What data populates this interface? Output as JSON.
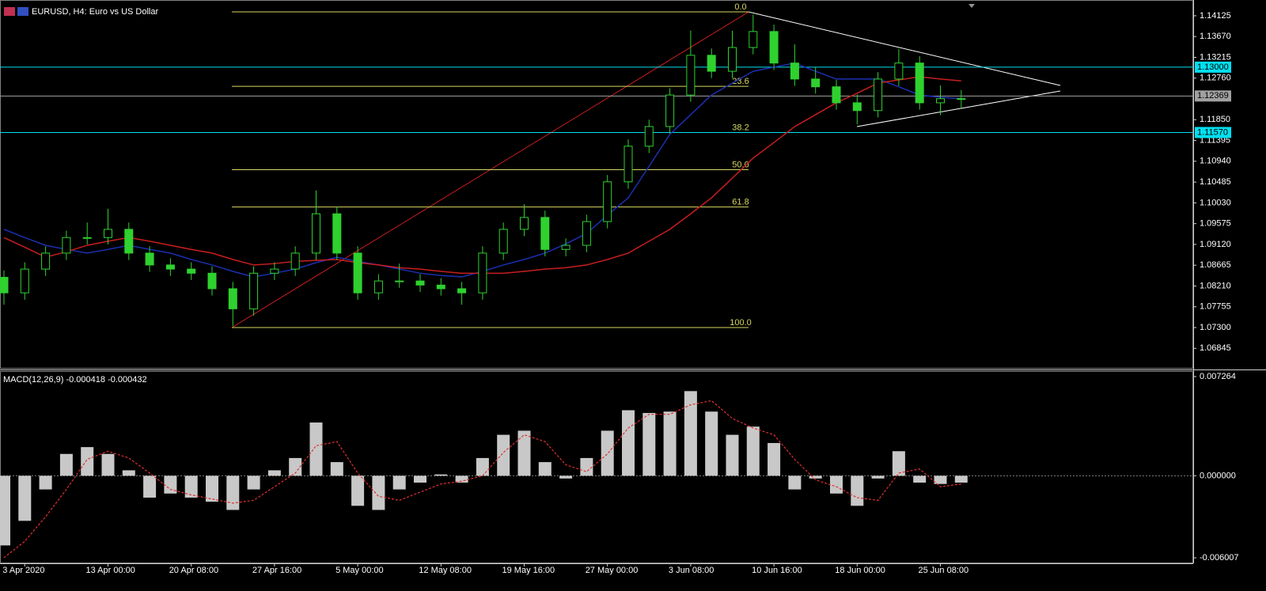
{
  "chart_data": [
    {
      "type": "candlestick",
      "title": "EURUSD, H4:  Euro vs US Dollar",
      "categories": [
        null,
        "3 Apr 2020",
        null,
        null,
        null,
        "13 Apr 00:00",
        null,
        null,
        null,
        "20 Apr 08:00",
        null,
        null,
        null,
        "27 Apr 16:00",
        null,
        null,
        null,
        "5 May 00:00",
        null,
        null,
        null,
        "12 May 08:00",
        null,
        null,
        null,
        "19 May 16:00",
        null,
        null,
        null,
        "27 May 00:00",
        null,
        null,
        null,
        "3 Jun 08:00",
        null,
        null,
        null,
        "10 Jun 16:00",
        null,
        null,
        null,
        "18 Jun 00:00",
        null,
        null,
        null,
        "25 Jun 08:00",
        null
      ],
      "open": [
        1.084,
        1.0806,
        1.0858,
        1.0893,
        1.0927,
        1.0927,
        1.0945,
        1.0893,
        1.0867,
        1.0858,
        1.0849,
        1.0815,
        1.0771,
        1.0849,
        1.0858,
        1.0893,
        1.0979,
        1.0893,
        1.0806,
        1.0832,
        1.0832,
        1.0823,
        1.0815,
        1.0806,
        1.0893,
        1.0945,
        1.0971,
        1.0901,
        1.091,
        1.0962,
        1.1049,
        1.1127,
        1.117,
        1.1239,
        1.1326,
        1.1291,
        1.1343,
        1.1378,
        1.1309,
        1.1274,
        1.1257,
        1.1222,
        1.1205,
        1.1274,
        1.1309,
        1.1222,
        1.1231
      ],
      "high": [
        1.0855,
        1.0873,
        1.0908,
        1.0942,
        1.096,
        1.099,
        1.096,
        1.0908,
        1.0882,
        1.0873,
        1.0864,
        1.083,
        1.0864,
        1.0873,
        1.0908,
        1.103,
        1.0994,
        1.0908,
        1.0847,
        1.087,
        1.0847,
        1.0838,
        1.083,
        1.0908,
        1.096,
        1.1,
        1.0986,
        1.0925,
        1.0977,
        1.1064,
        1.1142,
        1.1185,
        1.1254,
        1.138,
        1.1341,
        1.138,
        1.1415,
        1.1393,
        1.135,
        1.13,
        1.1272,
        1.124,
        1.1289,
        1.134,
        1.1324,
        1.126,
        1.125
      ],
      "low": [
        1.078,
        1.0791,
        1.0843,
        1.0878,
        1.0912,
        1.0912,
        1.0878,
        1.0852,
        1.0843,
        1.0834,
        1.08,
        1.0733,
        1.0756,
        1.0834,
        1.0843,
        1.0878,
        1.0878,
        1.0791,
        1.0791,
        1.0817,
        1.0808,
        1.08,
        1.078,
        1.0791,
        1.0878,
        1.093,
        1.0886,
        1.0886,
        1.0895,
        1.0947,
        1.1034,
        1.1112,
        1.1155,
        1.1224,
        1.1276,
        1.1276,
        1.1328,
        1.1294,
        1.1259,
        1.1242,
        1.1207,
        1.1175,
        1.119,
        1.1259,
        1.1207,
        1.1195,
        1.121
      ],
      "close": [
        1.0806,
        1.0858,
        1.0893,
        1.0927,
        1.0927,
        1.0945,
        1.0893,
        1.0867,
        1.0858,
        1.0849,
        1.0815,
        1.0771,
        1.0849,
        1.0858,
        1.0893,
        1.0979,
        1.0893,
        1.0806,
        1.0832,
        1.0832,
        1.0823,
        1.0815,
        1.0806,
        1.0893,
        1.0945,
        1.0971,
        1.0901,
        1.091,
        1.0962,
        1.1049,
        1.1127,
        1.117,
        1.1239,
        1.1326,
        1.1291,
        1.1343,
        1.1378,
        1.1309,
        1.1274,
        1.1257,
        1.1222,
        1.1205,
        1.1274,
        1.1309,
        1.1222,
        1.1231,
        1.1231
      ],
      "color": "#2fd12f",
      "lines": [
        {
          "color": "#1c2fb0",
          "values": [
            1.0945,
            1.0927,
            1.091,
            1.0901,
            1.0893,
            1.0901,
            1.091,
            1.0901,
            1.0893,
            1.0879,
            1.0867,
            1.0853,
            1.0841,
            1.0849,
            1.0858,
            1.0872,
            1.0884,
            1.0875,
            1.0867,
            1.0858,
            1.0849,
            1.0844,
            1.0841,
            1.0853,
            1.0867,
            1.0879,
            1.0893,
            1.0913,
            1.0936,
            1.0976,
            1.1014,
            1.1083,
            1.1153,
            1.1196,
            1.1239,
            1.1265,
            1.1291,
            1.13,
            1.1309,
            1.1291,
            1.1274,
            1.1274,
            1.1274,
            1.1257,
            1.1239,
            1.1234,
            1.1231
          ]
        },
        {
          "color": "#c81e1e",
          "values": [
            1.0927,
            1.0906,
            1.0884,
            1.0896,
            1.091,
            1.0919,
            1.0927,
            1.0919,
            1.091,
            1.0901,
            1.0893,
            1.0879,
            1.0867,
            1.087,
            1.0875,
            1.0877,
            1.0879,
            1.0872,
            1.0867,
            1.0861,
            1.0858,
            1.0853,
            1.0849,
            1.0849,
            1.0849,
            1.0853,
            1.0858,
            1.0861,
            1.0867,
            1.0879,
            1.0893,
            1.0919,
            1.0945,
            1.0979,
            1.1014,
            1.1057,
            1.1101,
            1.1135,
            1.117,
            1.1196,
            1.1222,
            1.1243,
            1.1265,
            1.1272,
            1.1279,
            1.1274,
            1.127
          ]
        }
      ],
      "ylim": [
        1.064,
        1.1447
      ],
      "yticks": [
        1.14125,
        {
          "value": 1.1367,
          "label": "1.13670"
        },
        1.13215,
        {
          "value": 1.1276,
          "label": "1.12760"
        },
        {
          "value": 1.1185,
          "label": "1.11850"
        },
        1.11395,
        {
          "value": 1.1094,
          "label": "1.10940"
        },
        1.10485,
        {
          "value": 1.1003,
          "label": "1.10030"
        },
        1.09575,
        {
          "value": 1.0912,
          "label": "1.09120"
        },
        1.08665,
        {
          "value": 1.0821,
          "label": "1.08210"
        },
        1.07755,
        {
          "value": 1.073,
          "label": "1.07300"
        },
        1.06845
      ],
      "levels": [
        {
          "value": 1.13,
          "label": "1.13000",
          "color": "#00e0f0"
        },
        {
          "value": 1.1157,
          "label": "1.11570",
          "color": "#00e0f0"
        },
        {
          "value": 1.12369,
          "color": "#a0a0a0"
        }
      ],
      "fibonacci": {
        "high": 1.1421,
        "low": 1.073,
        "color": "#d8d860",
        "levels": [
          {
            "value": 0,
            "label": "0.0"
          },
          23.6,
          38.2,
          {
            "value": 50,
            "label": "50.0"
          },
          61.8,
          {
            "value": 100,
            "label": "100.0"
          }
        ]
      }
    },
    {
      "type": "macd",
      "title": "MACD(12,26,9) -0.000418 -0.000432",
      "histogram": {
        "color": "#c8c8c8",
        "values": [
          -0.0051,
          -0.0033,
          -0.001,
          0.0016,
          0.0021,
          0.0016,
          0.0004,
          -0.0016,
          -0.0013,
          -0.0016,
          -0.0019,
          -0.0025,
          -0.001,
          0.0004,
          0.0013,
          0.0039,
          0.001,
          -0.0022,
          -0.0025,
          -0.001,
          -0.0005,
          0.0001,
          -0.0005,
          0.0013,
          0.003,
          0.0033,
          0.001,
          -0.0002,
          0.0013,
          0.0033,
          0.0048,
          0.0046,
          0.0047,
          0.0062,
          0.0047,
          0.003,
          0.0036,
          0.0024,
          -0.001,
          -0.0002,
          -0.0013,
          -0.0022,
          -0.0002,
          0.0018,
          -0.0005,
          -0.0006,
          -0.0005
        ]
      },
      "signal": {
        "color": "#e03030",
        "values": [
          -0.006,
          -0.0048,
          -0.003,
          -0.001,
          0.0012,
          0.0018,
          0.0013,
          0.0002,
          -0.001,
          -0.0014,
          -0.0017,
          -0.002,
          -0.0018,
          -0.0008,
          0.0002,
          0.0022,
          0.0025,
          0.0002,
          -0.0015,
          -0.0018,
          -0.0012,
          -0.0006,
          -0.0004,
          0.0,
          0.0017,
          0.003,
          0.0025,
          0.0008,
          0.0003,
          0.0016,
          0.0035,
          0.0045,
          0.0045,
          0.0052,
          0.0055,
          0.0042,
          0.0035,
          0.003,
          0.0012,
          -0.0003,
          -0.0008,
          -0.0016,
          -0.0018,
          0.0002,
          0.0005,
          -0.0008,
          -0.0006
        ]
      },
      "ylim": [
        -0.00641,
        0.00761
      ],
      "yticks": [
        0.007264,
        {
          "value": 0,
          "label": "0.000000"
        },
        -0.006007
      ]
    }
  ]
}
